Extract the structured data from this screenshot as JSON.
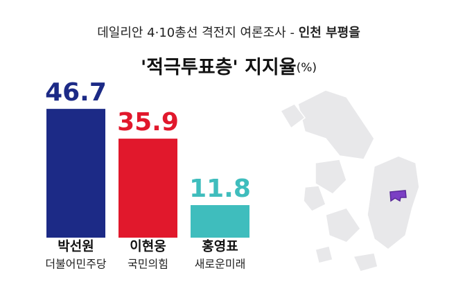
{
  "chart_data": {
    "type": "bar",
    "title": "데일리안 4·10총선 격전지 여론조사 -",
    "title_highlight": "인천 부평을",
    "subtitle": "'적극투표층' 지지율",
    "unit": "(%)",
    "categories": [
      "박선원",
      "이현웅",
      "홍영표"
    ],
    "parties": [
      "더불어민주당",
      "국민의힘",
      "새로운미래"
    ],
    "values": [
      46.7,
      35.9,
      11.8
    ],
    "colors": [
      "#1c2a86",
      "#e1182c",
      "#3fbdbd"
    ]
  }
}
